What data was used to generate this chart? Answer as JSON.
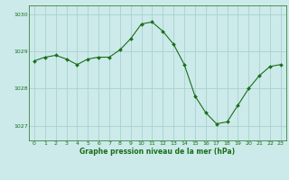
{
  "x": [
    0,
    1,
    2,
    3,
    4,
    5,
    6,
    7,
    8,
    9,
    10,
    11,
    12,
    13,
    14,
    15,
    16,
    17,
    18,
    19,
    20,
    21,
    22,
    23
  ],
  "y": [
    1028.75,
    1028.85,
    1028.9,
    1028.8,
    1028.65,
    1028.8,
    1028.85,
    1028.85,
    1029.05,
    1029.35,
    1029.75,
    1029.8,
    1029.55,
    1029.2,
    1028.65,
    1027.8,
    1027.35,
    1027.05,
    1027.1,
    1027.55,
    1028.0,
    1028.35,
    1028.6,
    1028.65
  ],
  "line_color": "#1a6e1a",
  "marker_color": "#1a6e1a",
  "bg_color": "#cceaea",
  "grid_color": "#aad0d0",
  "xlabel": "Graphe pression niveau de la mer (hPa)",
  "xlabel_color": "#1a6e1a",
  "tick_color": "#1a6e1a",
  "ylim": [
    1026.6,
    1030.25
  ],
  "xlim": [
    -0.5,
    23.5
  ],
  "yticks": [
    1027,
    1028,
    1029,
    1030
  ],
  "xticks": [
    0,
    1,
    2,
    3,
    4,
    5,
    6,
    7,
    8,
    9,
    10,
    11,
    12,
    13,
    14,
    15,
    16,
    17,
    18,
    19,
    20,
    21,
    22,
    23
  ],
  "figsize": [
    3.2,
    2.0
  ],
  "dpi": 100
}
